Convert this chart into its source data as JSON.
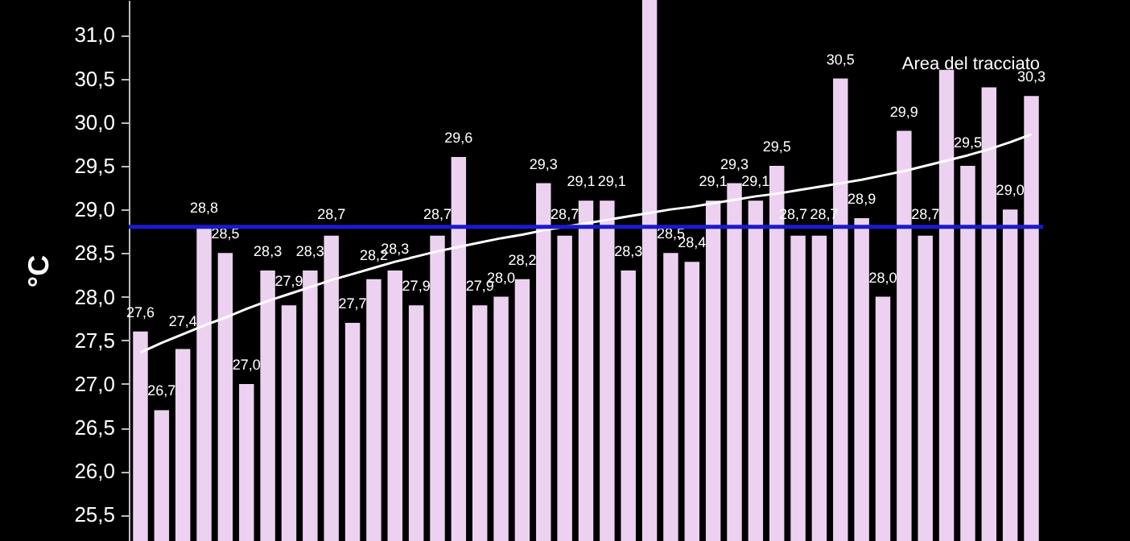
{
  "chart_data": {
    "type": "bar",
    "ylabel": "°C",
    "categories": [
      null,
      null,
      null,
      null,
      null,
      null,
      null,
      null,
      null,
      null,
      null,
      null,
      null,
      null,
      null,
      null,
      null,
      null,
      null,
      null,
      null,
      null,
      null,
      null,
      null,
      null,
      null,
      null,
      null,
      null,
      null,
      null,
      null,
      null,
      null,
      null,
      null,
      null,
      null,
      null,
      null,
      null,
      null
    ],
    "series": [
      {
        "color": "#ecd2f0",
        "values": [
          27.6,
          26.7,
          27.4,
          28.8,
          28.5,
          27.0,
          28.3,
          27.9,
          28.3,
          28.7,
          27.7,
          28.2,
          28.3,
          27.9,
          28.7,
          29.6,
          27.9,
          28.0,
          28.2,
          29.3,
          28.7,
          29.1,
          29.1,
          28.3,
          31.4,
          28.5,
          28.4,
          29.1,
          29.3,
          29.1,
          29.5,
          28.7,
          28.7,
          30.5,
          28.9,
          28.0,
          29.9,
          28.7,
          30.6,
          29.5,
          30.4,
          29.0,
          30.3
        ],
        "value_labels": [
          "27,6",
          "26,7",
          "27,4",
          "28,8",
          "28,5",
          "27,0",
          "28,3",
          "27,9",
          "28,3",
          "28,7",
          "27,7",
          "28,2",
          "28,3",
          "27,9",
          "28,7",
          "29,6",
          "27,9",
          "28,0",
          "28,2",
          "29,3",
          "28,7",
          "29,1",
          "29,1",
          "28,3",
          null,
          "28,5",
          "28,4",
          "29,1",
          "29,3",
          "29,1",
          "29,5",
          "28,7",
          "28,7",
          "30,5",
          "28,9",
          "28,0",
          "29,9",
          "28,7",
          null,
          "29,5",
          null,
          "29,0",
          "30,3"
        ]
      },
      {
        "type": "line",
        "color": "#ffffff",
        "values": [
          27.36,
          27.47,
          27.57,
          27.67,
          27.76,
          27.86,
          27.95,
          28.03,
          28.11,
          28.19,
          28.26,
          28.33,
          28.4,
          28.46,
          28.52,
          28.57,
          28.62,
          28.67,
          28.71,
          28.76,
          28.8,
          28.84,
          28.88,
          28.92,
          28.96,
          29.0,
          29.03,
          29.07,
          29.11,
          29.15,
          29.18,
          29.22,
          29.26,
          29.3,
          29.34,
          29.39,
          29.44,
          29.5,
          29.56,
          29.62,
          29.69,
          29.77,
          29.86
        ]
      }
    ],
    "ref_lines": [
      {
        "axis": "y",
        "value": 28.8,
        "color": "#1a1ad2"
      }
    ],
    "annotations": [
      "Area del tracciato"
    ],
    "ylim": [
      25.2,
      31.4
    ],
    "yticks": [
      {
        "value": 25.5,
        "label": "25,5"
      },
      {
        "value": 26,
        "label": "26,0"
      },
      {
        "value": 26.5,
        "label": "26,5"
      },
      {
        "value": 27,
        "label": "27,0"
      },
      {
        "value": 27.5,
        "label": "27,5"
      },
      {
        "value": 28,
        "label": "28,0"
      },
      {
        "value": 28.5,
        "label": "28,5"
      },
      {
        "value": 29,
        "label": "29,0"
      },
      {
        "value": 29.5,
        "label": "29,5"
      },
      {
        "value": 30,
        "label": "30,0"
      },
      {
        "value": 30.5,
        "label": "30,5"
      },
      {
        "value": 31,
        "label": "31,0"
      }
    ],
    "tick_labels": "y",
    "grid": false
  }
}
